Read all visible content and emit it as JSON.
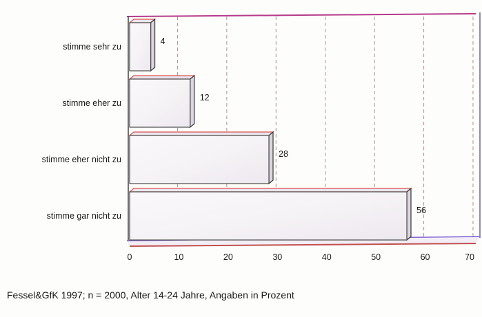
{
  "chart_data": {
    "type": "bar",
    "orientation": "horizontal",
    "categories": [
      "stimme sehr zu",
      "stimme eher zu",
      "stimme eher nicht zu",
      "stimme gar nicht zu"
    ],
    "values": [
      4,
      12,
      28,
      56
    ],
    "value_labels": [
      "4",
      "12",
      "28",
      "56"
    ],
    "xlim": [
      0,
      70
    ],
    "xticks": [
      0,
      10,
      20,
      30,
      40,
      50,
      60,
      70
    ],
    "xtick_labels": [
      "0",
      "10",
      "20",
      "30",
      "40",
      "50",
      "60",
      "70"
    ],
    "grid": "vertical dashed",
    "style": "3d",
    "colors": {
      "bar_fill": "#f6f3f6",
      "bar_edge": "#4a4a4a",
      "bar_top_edge": "#d9534f",
      "grid": "#b09090",
      "frame_top": "#b53a8a",
      "frame_bottom": "#7a5bd0"
    }
  },
  "footer": {
    "source": "Fessel&GfK 1997; n = 2000, Alter 14-24 Jahre, Angaben in Prozent"
  }
}
